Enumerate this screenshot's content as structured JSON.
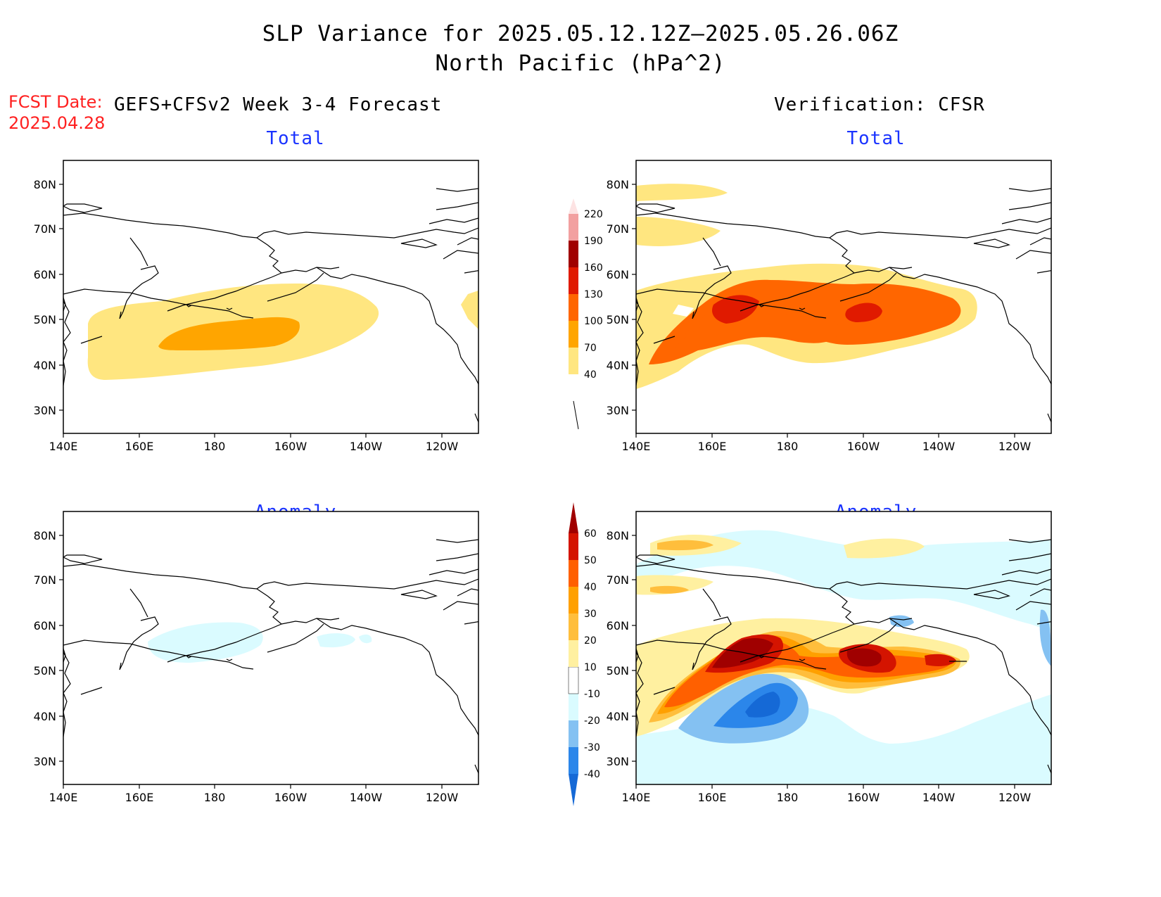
{
  "header": {
    "title_line1": "SLP Variance for 2025.05.12.12Z–2025.05.26.06Z",
    "title_line2": "North Pacific (hPa^2)",
    "fcst_label": "FCST Date:",
    "fcst_date": "2025.04.28",
    "left_heading": "GEFS+CFSv2 Week 3-4 Forecast",
    "right_heading": "Verification: CFSR"
  },
  "panels": {
    "top_left_title": "Total",
    "top_right_title": "Total",
    "bottom_left_title": "Anomaly",
    "bottom_right_title": "Anomaly"
  },
  "axes": {
    "lat_labels": [
      "80N",
      "70N",
      "60N",
      "50N",
      "40N",
      "30N"
    ],
    "lon_labels": [
      "140E",
      "160E",
      "180",
      "160W",
      "140W",
      "120W"
    ]
  },
  "colorbars": {
    "total": {
      "levels": [
        "40",
        "70",
        "100",
        "130",
        "160",
        "190",
        "220"
      ],
      "colors": [
        "#ffe680",
        "#ffa500",
        "#ff6600",
        "#e01a00",
        "#a00000",
        "#f2a0a0",
        "#fde3e3"
      ]
    },
    "anomaly": {
      "levels": [
        "-40",
        "-30",
        "-20",
        "-10",
        "10",
        "20",
        "30",
        "40",
        "50",
        "60"
      ],
      "colors": [
        "#1569d6",
        "#2b86ea",
        "#84c1f2",
        "#dafbff",
        "#ffffff",
        "#fff0a0",
        "#ffbe3c",
        "#ffa000",
        "#ff6000",
        "#d41400",
        "#a00000"
      ]
    }
  },
  "fields": {
    "yellow": "#ffe680",
    "orange": "#ffa500",
    "dark_orange": "#ff6600",
    "red": "#e01a00",
    "dark_red": "#a00000",
    "light_cyan": "#dafbff",
    "light_blue": "#84c1f2",
    "blue": "#2b86ea",
    "dark_blue": "#1569d6",
    "pale_yellow": "#fff0a0"
  }
}
